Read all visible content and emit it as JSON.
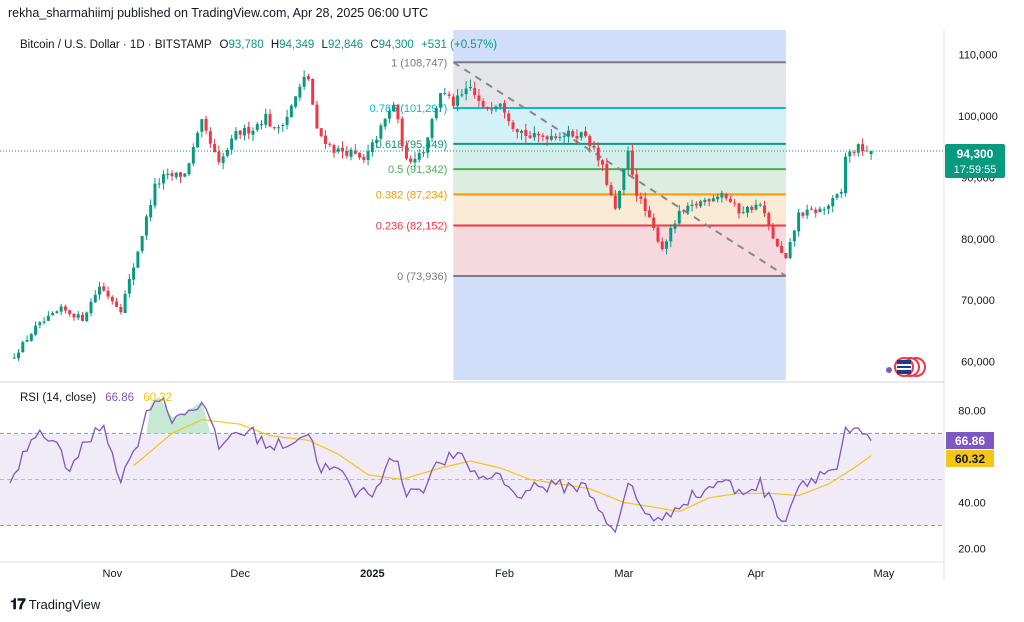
{
  "header": {
    "published_by": "rekha_sharmahiimj published on TradingView.com, Apr 28, 2025 06:00 UTC"
  },
  "symbol": {
    "name": "Bitcoin / U.S. Dollar · 1D · BITSTAMP",
    "open_label": "O",
    "open": "93,780",
    "high_label": "H",
    "high": "94,349",
    "low_label": "L",
    "low": "92,846",
    "close_label": "C",
    "close": "94,300",
    "change": "+531 (+0.57%)"
  },
  "price_badge": {
    "price": "94,300",
    "countdown": "17:59:55"
  },
  "rsi": {
    "label": "RSI (14, close)",
    "value": "66.86",
    "ma_value": "60.32",
    "color_rsi": "#7e57c2",
    "color_ma": "#f5c518"
  },
  "footer": {
    "brand": "TradingView"
  },
  "colors": {
    "up": "#089981",
    "down": "#f23645",
    "badge_up": "#089981",
    "rsi_band": "#ede7f6"
  },
  "chart_data": [
    {
      "type": "candlestick",
      "title": "Bitcoin / U.S. Dollar · 1D · BITSTAMP",
      "ylim": [
        57000,
        114000
      ],
      "yticks": [
        "110,000",
        "100,000",
        "90,000",
        "80,000",
        "70,000",
        "60,000"
      ],
      "ytick_values": [
        110000,
        100000,
        90000,
        80000,
        70000,
        60000
      ],
      "xticks": [
        "Nov",
        "Dec",
        "2025",
        "Feb",
        "Mar",
        "Apr",
        "May"
      ],
      "xtick_dates": [
        "2024-11-01",
        "2024-12-01",
        "2025-01-01",
        "2025-02-01",
        "2025-03-01",
        "2025-04-01",
        "2025-05-01"
      ],
      "x_range": [
        "2024-10-08",
        "2025-05-09"
      ],
      "close_anchors": [
        [
          "2024-10-09",
          61000
        ],
        [
          "2024-10-14",
          65500
        ],
        [
          "2024-10-20",
          68500
        ],
        [
          "2024-10-25",
          67000
        ],
        [
          "2024-10-29",
          72300
        ],
        [
          "2024-11-03",
          68500
        ],
        [
          "2024-11-06",
          75500
        ],
        [
          "2024-11-11",
          88500
        ],
        [
          "2024-11-13",
          90000
        ],
        [
          "2024-11-18",
          90500
        ],
        [
          "2024-11-22",
          98800
        ],
        [
          "2024-11-26",
          92000
        ],
        [
          "2024-11-30",
          97000
        ],
        [
          "2024-12-04",
          98000
        ],
        [
          "2024-12-07",
          100000
        ],
        [
          "2024-12-09",
          97500
        ],
        [
          "2024-12-12",
          100000
        ],
        [
          "2024-12-16",
          106000
        ],
        [
          "2024-12-17",
          106100
        ],
        [
          "2024-12-19",
          97500
        ],
        [
          "2024-12-23",
          94500
        ],
        [
          "2024-12-27",
          94000
        ],
        [
          "2024-12-30",
          92500
        ],
        [
          "2025-01-06",
          102000
        ],
        [
          "2025-01-09",
          92500
        ],
        [
          "2025-01-13",
          94500
        ],
        [
          "2025-01-17",
          104000
        ],
        [
          "2025-01-20",
          102000
        ],
        [
          "2025-01-24",
          104500
        ],
        [
          "2025-01-27",
          101000
        ],
        [
          "2025-01-31",
          102500
        ],
        [
          "2025-02-03",
          98500
        ],
        [
          "2025-02-07",
          96500
        ],
        [
          "2025-02-14",
          97000
        ],
        [
          "2025-02-20",
          97000
        ],
        [
          "2025-02-24",
          91500
        ],
        [
          "2025-02-27",
          84500
        ],
        [
          "2025-03-02",
          94000
        ],
        [
          "2025-03-04",
          87500
        ],
        [
          "2025-03-10",
          78500
        ],
        [
          "2025-03-14",
          84000
        ],
        [
          "2025-03-19",
          86000
        ],
        [
          "2025-03-24",
          87500
        ],
        [
          "2025-03-28",
          84500
        ],
        [
          "2025-04-02",
          85500
        ],
        [
          "2025-04-06",
          78500
        ],
        [
          "2025-04-08",
          76500
        ],
        [
          "2025-04-11",
          84000
        ],
        [
          "2025-04-17",
          84800
        ],
        [
          "2025-04-21",
          87500
        ],
        [
          "2025-04-22",
          93500
        ],
        [
          "2025-04-25",
          94800
        ],
        [
          "2025-04-28",
          94300
        ]
      ],
      "last_candle": {
        "date": "2025-04-28",
        "open": 93780,
        "high": 94349,
        "low": 92846,
        "close": 94300
      },
      "fibonacci": {
        "start": "2025-01-20",
        "end": "2025-04-08",
        "levels": [
          {
            "ratio": "1",
            "label": "1 (108,747)",
            "price": 108747,
            "color": "#787b86",
            "fill": "#e6e6e6"
          },
          {
            "ratio": "0.786",
            "label": "0.786 (101,297)",
            "price": 101297,
            "color": "#00bcd4",
            "fill": "#d4f3f7"
          },
          {
            "ratio": "0.618",
            "label": "0.618 (95,449)",
            "price": 95449,
            "color": "#089981",
            "fill": "#d3efe9"
          },
          {
            "ratio": "0.5",
            "label": "0.5 (91,342)",
            "price": 91342,
            "color": "#4caf50",
            "fill": "#dcf0dd"
          },
          {
            "ratio": "0.382",
            "label": "0.382 (87,234)",
            "price": 87234,
            "color": "#ff9800",
            "fill": "#fdebd2"
          },
          {
            "ratio": "0.236",
            "label": "0.236 (82,152)",
            "price": 82152,
            "color": "#f23645",
            "fill": "#f9d8dc"
          },
          {
            "ratio": "0",
            "label": "0 (73,936)",
            "price": 73936,
            "color": "#787b86",
            "fill": ""
          }
        ]
      },
      "highlight_range": {
        "start": "2025-01-20",
        "end": "2025-04-08",
        "color": "#c9d8f8"
      }
    },
    {
      "type": "line",
      "title": "RSI (14, close)",
      "ylim": [
        15,
        88
      ],
      "yticks": [
        "80.00",
        "40.00",
        "20.00"
      ],
      "ytick_values": [
        80,
        40,
        20
      ],
      "bands": [
        70,
        50,
        30
      ],
      "series": [
        {
          "name": "RSI",
          "anchors": [
            [
              "2024-10-08",
              46
            ],
            [
              "2024-10-11",
              60
            ],
            [
              "2024-10-15",
              72
            ],
            [
              "2024-10-18",
              66
            ],
            [
              "2024-10-22",
              55
            ],
            [
              "2024-10-26",
              66
            ],
            [
              "2024-10-30",
              74
            ],
            [
              "2024-11-03",
              50
            ],
            [
              "2024-11-06",
              62
            ],
            [
              "2024-11-10",
              83
            ],
            [
              "2024-11-12",
              86
            ],
            [
              "2024-11-15",
              77
            ],
            [
              "2024-11-18",
              79
            ],
            [
              "2024-11-22",
              84
            ],
            [
              "2024-11-26",
              64
            ],
            [
              "2024-11-30",
              71
            ],
            [
              "2024-12-04",
              70
            ],
            [
              "2024-12-08",
              64
            ],
            [
              "2024-12-12",
              66
            ],
            [
              "2024-12-17",
              70
            ],
            [
              "2024-12-20",
              55
            ],
            [
              "2024-12-24",
              54
            ],
            [
              "2024-12-28",
              44
            ],
            [
              "2025-01-01",
              45
            ],
            [
              "2025-01-06",
              60
            ],
            [
              "2025-01-09",
              45
            ],
            [
              "2025-01-13",
              47
            ],
            [
              "2025-01-17",
              58
            ],
            [
              "2025-01-21",
              60
            ],
            [
              "2025-01-27",
              50
            ],
            [
              "2025-01-31",
              53
            ],
            [
              "2025-02-03",
              43
            ],
            [
              "2025-02-08",
              47
            ],
            [
              "2025-02-14",
              47
            ],
            [
              "2025-02-20",
              47
            ],
            [
              "2025-02-24",
              36
            ],
            [
              "2025-02-27",
              25
            ],
            [
              "2025-03-02",
              49
            ],
            [
              "2025-03-05",
              38
            ],
            [
              "2025-03-10",
              31
            ],
            [
              "2025-03-14",
              40
            ],
            [
              "2025-03-19",
              44
            ],
            [
              "2025-03-24",
              50
            ],
            [
              "2025-03-28",
              44
            ],
            [
              "2025-04-02",
              48
            ],
            [
              "2025-04-06",
              36
            ],
            [
              "2025-04-08",
              33
            ],
            [
              "2025-04-11",
              48
            ],
            [
              "2025-04-17",
              53
            ],
            [
              "2025-04-20",
              55
            ],
            [
              "2025-04-22",
              70
            ],
            [
              "2025-04-25",
              70
            ],
            [
              "2025-04-28",
              66.86
            ]
          ]
        },
        {
          "name": "RSI-based MA",
          "anchors": [
            [
              "2024-11-06",
              56
            ],
            [
              "2024-11-15",
              70
            ],
            [
              "2024-11-22",
              76
            ],
            [
              "2024-12-01",
              74
            ],
            [
              "2024-12-08",
              69
            ],
            [
              "2024-12-17",
              67
            ],
            [
              "2024-12-24",
              61
            ],
            [
              "2024-12-31",
              52
            ],
            [
              "2025-01-08",
              50
            ],
            [
              "2025-01-17",
              55
            ],
            [
              "2025-01-24",
              58
            ],
            [
              "2025-01-31",
              55
            ],
            [
              "2025-02-07",
              50
            ],
            [
              "2025-02-14",
              48
            ],
            [
              "2025-02-21",
              46
            ],
            [
              "2025-03-01",
              40
            ],
            [
              "2025-03-08",
              38
            ],
            [
              "2025-03-14",
              36
            ],
            [
              "2025-03-21",
              42
            ],
            [
              "2025-03-28",
              44
            ],
            [
              "2025-04-04",
              44
            ],
            [
              "2025-04-11",
              43
            ],
            [
              "2025-04-18",
              48
            ],
            [
              "2025-04-24",
              55
            ],
            [
              "2025-04-28",
              60.32
            ]
          ]
        }
      ]
    }
  ]
}
